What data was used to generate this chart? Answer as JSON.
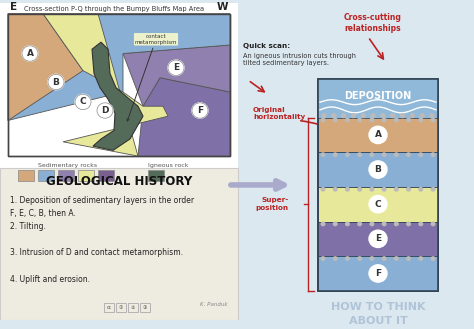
{
  "bg_color": "#dce8f0",
  "cross_section": {
    "title": "Cross-section P-Q through the Bumpy Bluffs Map Area",
    "E_label": "E",
    "W_label": "W",
    "colors": {
      "A": "#d4a87a",
      "B": "#8aafd4",
      "C": "#e8e89a",
      "D": "#556b5a",
      "E": "#9080b0",
      "F": "#8070a8"
    },
    "legend_sedimentary": "Sedimentary rocks",
    "legend_igneous": "Igneous rock",
    "legend_colors": [
      "#d4a87a",
      "#8aafd4",
      "#9080b0",
      "#e8e89a",
      "#7a6090"
    ],
    "legend_igneous_color": "#556b5a",
    "contact_meta_label": "contact\nmetamorphism"
  },
  "geo_history": {
    "title": "GEOLOGICAL HISTORY",
    "bg": "#eeebe0",
    "items": [
      "1. Deposition of sedimentary layers in the order\nF, E, C, B, then A.",
      "2. Tilting.",
      "3. Intrusion of D and contact metamorphism.",
      "4. Uplift and erosion."
    ],
    "credit": "K. Panduk"
  },
  "right_panel": {
    "cross_cutting_label": "Cross-cutting\nrelationships",
    "quick_scan_bold": "Quick scan:",
    "quick_scan_text": "An igneous intrusion cuts through\ntilted sedimentary layers.",
    "orig_horiz_label": "Original\nhorizontality",
    "super_label": "Super-\nposition",
    "deposition_label": "DEPOSITION",
    "how_label": "HOW TO THINK\nABOUT IT",
    "water_color": "#90b8d8",
    "arrow_color": "#bb2222",
    "layer_specs": [
      [
        "A",
        "#d4a87a"
      ],
      [
        "B",
        "#8aafd4"
      ],
      [
        "C",
        "#e8e89a"
      ],
      [
        "E",
        "#8070a8"
      ],
      [
        "F",
        "#8aafd4"
      ]
    ]
  }
}
